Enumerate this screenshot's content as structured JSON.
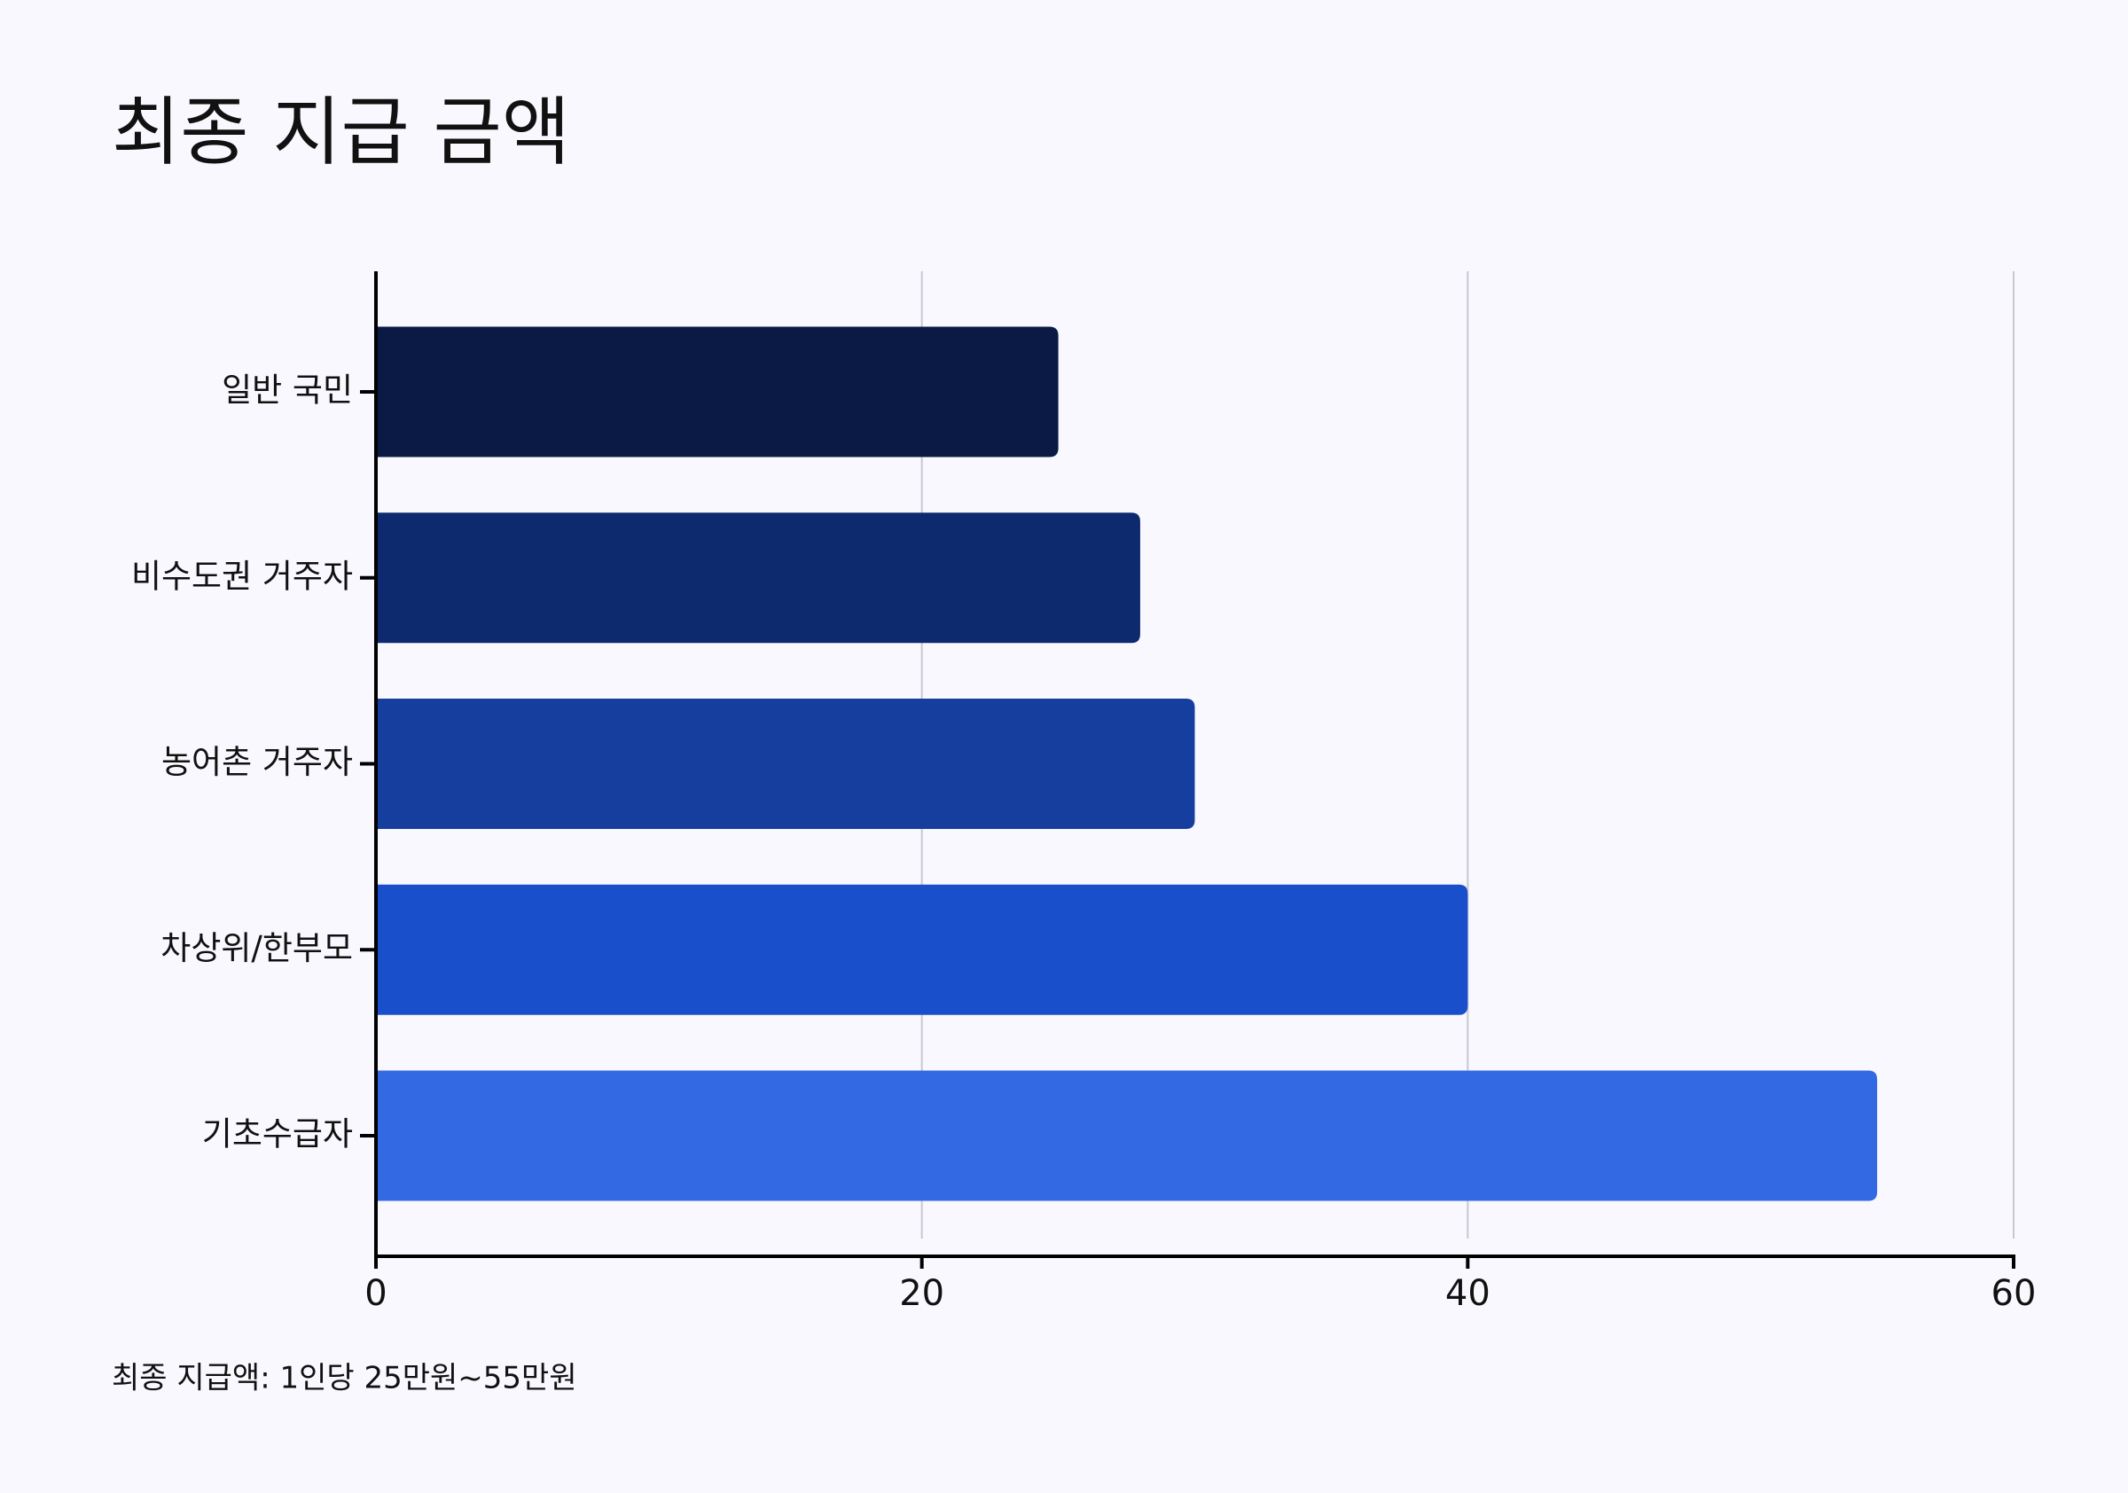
{
  "chart_data": {
    "type": "bar",
    "orientation": "horizontal",
    "title": "최종 지급 금액",
    "categories": [
      "일반 국민",
      "비수도권 거주자",
      "농어촌 거주자",
      "차상위/한부모",
      "기초수급자"
    ],
    "values": [
      25,
      28,
      30,
      40,
      55
    ],
    "colors": [
      "#0a1a44",
      "#0e2a6e",
      "#163e9e",
      "#1a4fcc",
      "#3469e4"
    ],
    "xlim": [
      0,
      60
    ],
    "xticks": [
      0,
      20,
      40,
      60
    ],
    "grid": true,
    "note": "최종 지급액: 1인당 25만원~55만원"
  }
}
